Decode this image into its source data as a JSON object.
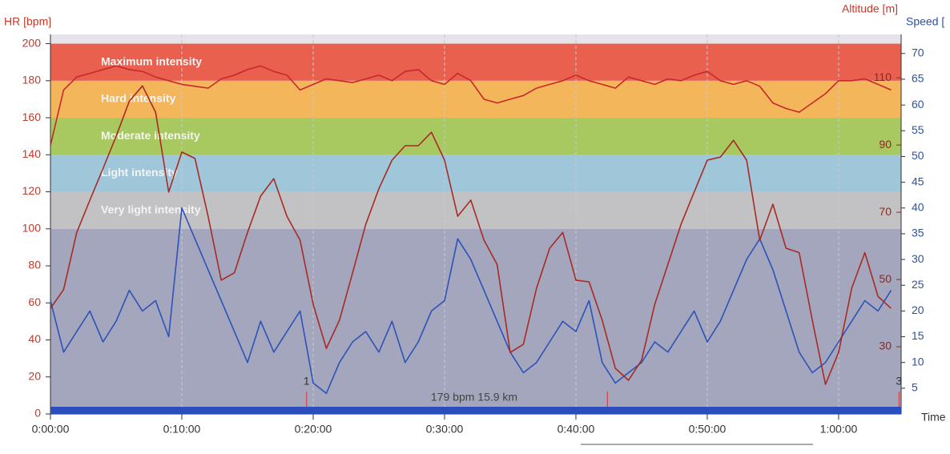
{
  "chart_data": {
    "type": "line",
    "axis_labels": {
      "y": "HR [bpm]",
      "y3": "Altitude [m]",
      "y2": "Speed [",
      "x": "Time"
    },
    "x": [
      0,
      1,
      2,
      3,
      4,
      5,
      6,
      7,
      8,
      9,
      10,
      11,
      12,
      13,
      14,
      15,
      16,
      17,
      18,
      19,
      20,
      21,
      22,
      23,
      24,
      25,
      26,
      27,
      28,
      29,
      30,
      31,
      32,
      33,
      34,
      35,
      36,
      37,
      38,
      39,
      40,
      41,
      42,
      43,
      44,
      45,
      46,
      47,
      48,
      49,
      50,
      51,
      52,
      53,
      54,
      55,
      56,
      57,
      58,
      59,
      60,
      61,
      62,
      63,
      64
    ],
    "xlim": [
      0,
      64.76
    ],
    "xticks": [
      {
        "value": 0,
        "label": "0:00:00"
      },
      {
        "value": 10,
        "label": "0:10:00"
      },
      {
        "value": 20,
        "label": "0:20:00"
      },
      {
        "value": 30,
        "label": "0:30:00"
      },
      {
        "value": 40,
        "label": "0:40:00"
      },
      {
        "value": 50,
        "label": "0:50:00"
      },
      {
        "value": 60,
        "label": "1:00:00"
      }
    ],
    "ylim": [
      0,
      205
    ],
    "yticks": [
      0,
      20,
      40,
      60,
      80,
      100,
      120,
      140,
      160,
      180,
      200
    ],
    "y2lim": [
      0,
      73.7
    ],
    "y2ticks": [
      5,
      10,
      15,
      20,
      25,
      30,
      35,
      40,
      45,
      50,
      55,
      60,
      65,
      70
    ],
    "y3lim": [
      10,
      122.9
    ],
    "y3ticks": [
      30,
      50,
      70,
      90,
      110
    ],
    "zones": [
      {
        "name": "Very light intensity",
        "from": 100,
        "to": 120,
        "color": "#c2c2c4"
      },
      {
        "name": "Light intensity",
        "from": 120,
        "to": 140,
        "color": "#9fc6d9"
      },
      {
        "name": "Moderate intensity",
        "from": 140,
        "to": 160,
        "color": "#a8c960"
      },
      {
        "name": "Hard intensity",
        "from": 160,
        "to": 180,
        "color": "#f4b65a"
      },
      {
        "name": "Maximum intensity",
        "from": 180,
        "to": 200,
        "color": "#e9604f"
      }
    ],
    "series": [
      {
        "name": "HR",
        "color": "#c8282c",
        "axis": "y",
        "values": [
          145,
          175,
          182,
          184,
          186,
          188,
          186,
          185,
          182,
          180,
          178,
          177,
          176,
          181,
          183,
          186,
          188,
          185,
          183,
          175,
          178,
          181,
          180,
          179,
          181,
          183,
          180,
          185,
          186,
          180,
          178,
          184,
          180,
          170,
          168,
          170,
          172,
          176,
          178,
          180,
          183,
          180,
          178,
          176,
          182,
          180,
          178,
          181,
          180,
          183,
          185,
          180,
          178,
          180,
          177,
          168,
          165,
          163,
          168,
          173,
          180,
          180,
          181,
          178,
          175
        ]
      },
      {
        "name": "Altitude",
        "color": "#a82a24",
        "axis": "y3",
        "values": [
          41.4,
          47,
          64,
          73.6,
          83,
          92.6,
          103,
          107.6,
          99.8,
          76,
          87.9,
          86,
          68.8,
          49.8,
          52,
          64,
          74.8,
          80,
          68.8,
          61.7,
          42.6,
          29.5,
          37.9,
          52,
          66.4,
          77,
          85.5,
          89.8,
          89.8,
          93.8,
          85.5,
          68.8,
          73.6,
          61.7,
          54.5,
          28.3,
          30.7,
          47.4,
          59.3,
          64,
          49.8,
          49.3,
          37.9,
          23.6,
          20,
          26,
          42.6,
          54.5,
          66.4,
          76,
          85.5,
          86.4,
          91.4,
          85.5,
          61.7,
          72.4,
          59.3,
          58,
          37.9,
          18.8,
          28.3,
          47.4,
          58,
          45,
          41.4
        ]
      },
      {
        "name": "Speed",
        "color": "#2d52b8",
        "axis": "y2",
        "values": [
          22,
          12,
          16,
          20,
          14,
          18,
          24,
          20,
          22,
          15,
          40,
          34,
          28,
          22,
          16,
          10,
          18,
          12,
          16,
          20,
          6,
          4,
          10,
          14,
          16,
          12,
          18,
          10,
          14,
          20,
          22,
          34,
          30,
          24,
          18,
          12,
          8,
          10,
          14,
          18,
          16,
          22,
          10,
          6,
          8,
          10,
          14,
          12,
          16,
          20,
          14,
          18,
          24,
          30,
          34,
          28,
          20,
          12,
          8,
          10,
          14,
          18,
          22,
          20,
          24
        ]
      }
    ],
    "laps": [
      {
        "x": 19.5,
        "label": "1"
      },
      {
        "x": 42.4
      },
      {
        "x": 64.6,
        "label": "3"
      }
    ],
    "annotation": "179 bpm 15.9 km"
  }
}
